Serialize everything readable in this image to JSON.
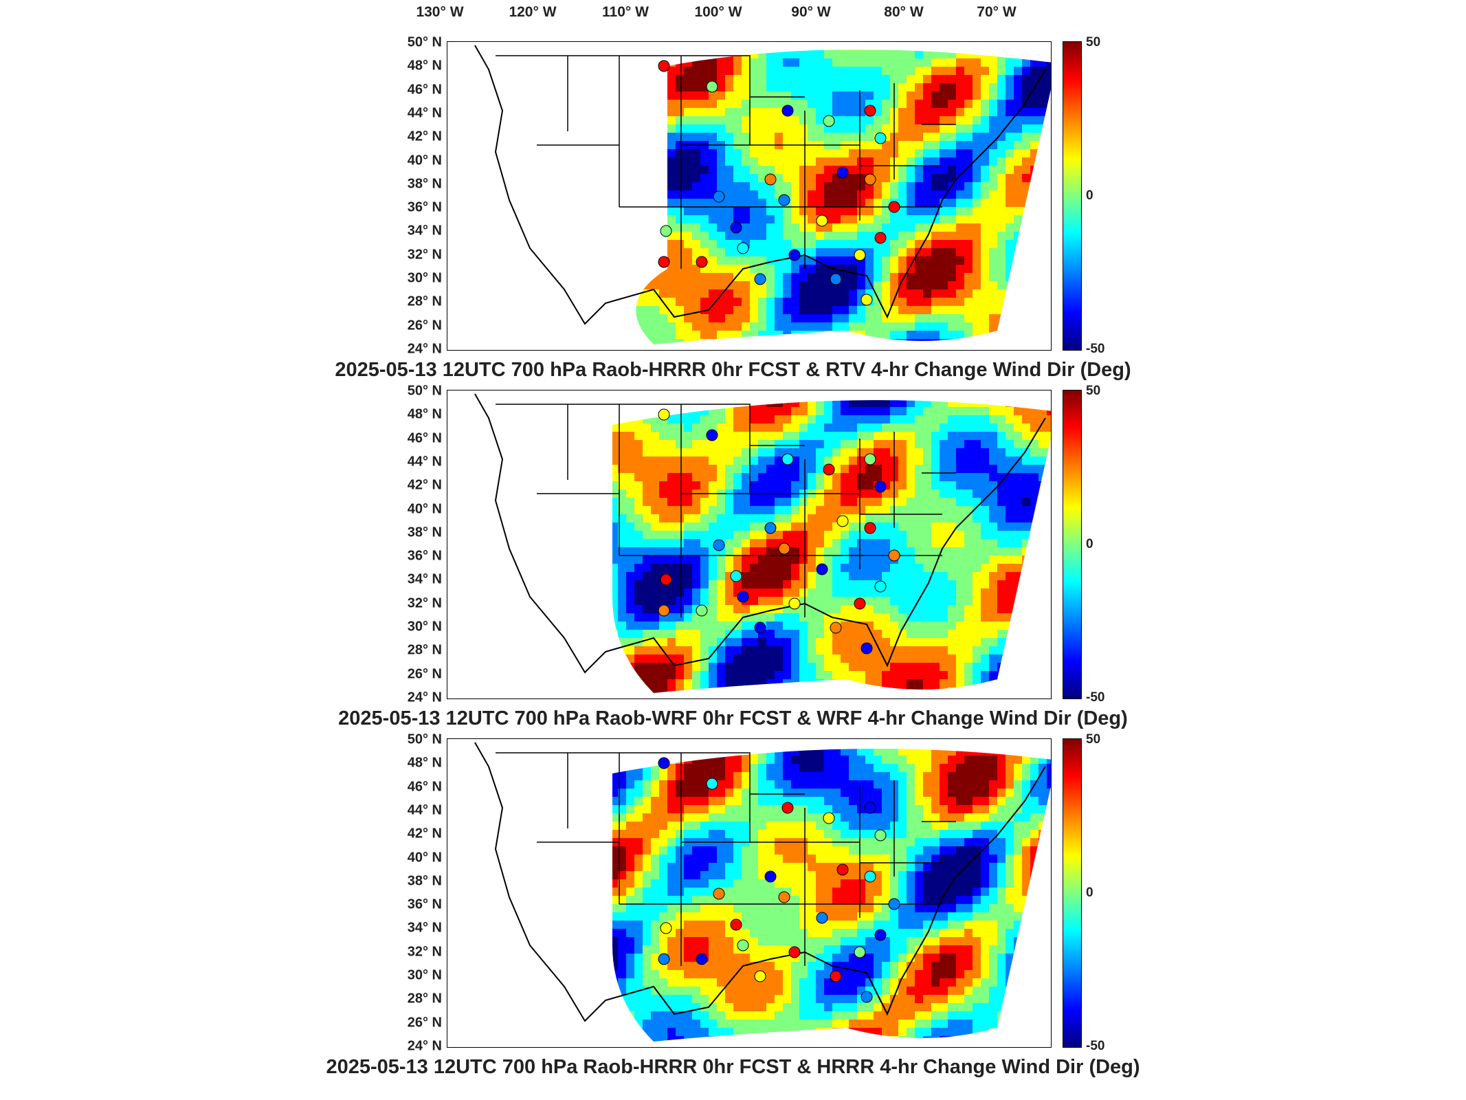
{
  "longitude_labels": [
    "130° W",
    "120° W",
    "110° W",
    "100° W",
    "90° W",
    "80° W",
    "70° W"
  ],
  "latitude_labels": [
    "50° N",
    "48° N",
    "46° N",
    "44° N",
    "42° N",
    "40° N",
    "38° N",
    "36° N",
    "34° N",
    "32° N",
    "30° N",
    "28° N",
    "26° N",
    "24° N"
  ],
  "colorbar": {
    "max_label": "50",
    "mid_label": "0",
    "min_label": "-50",
    "colormap": [
      "#800000",
      "#ff0000",
      "#ff8000",
      "#ffff00",
      "#80ff80",
      "#00ffff",
      "#0080ff",
      "#0000ff",
      "#000080"
    ]
  },
  "panels": [
    {
      "title": "2025-05-13 12UTC 700 hPa Raob-HRRR 0hr FCST & RTV 4-hr Change Wind Dir (Deg)"
    },
    {
      "title": "2025-05-13 12UTC 700 hPa Raob-WRF 0hr FCST & WRF 4-hr Change Wind Dir (Deg)"
    },
    {
      "title": "2025-05-13 12UTC 700 hPa Raob-HRRR 0hr FCST & HRRR 4-hr Change Wind Dir (Deg)"
    }
  ]
}
